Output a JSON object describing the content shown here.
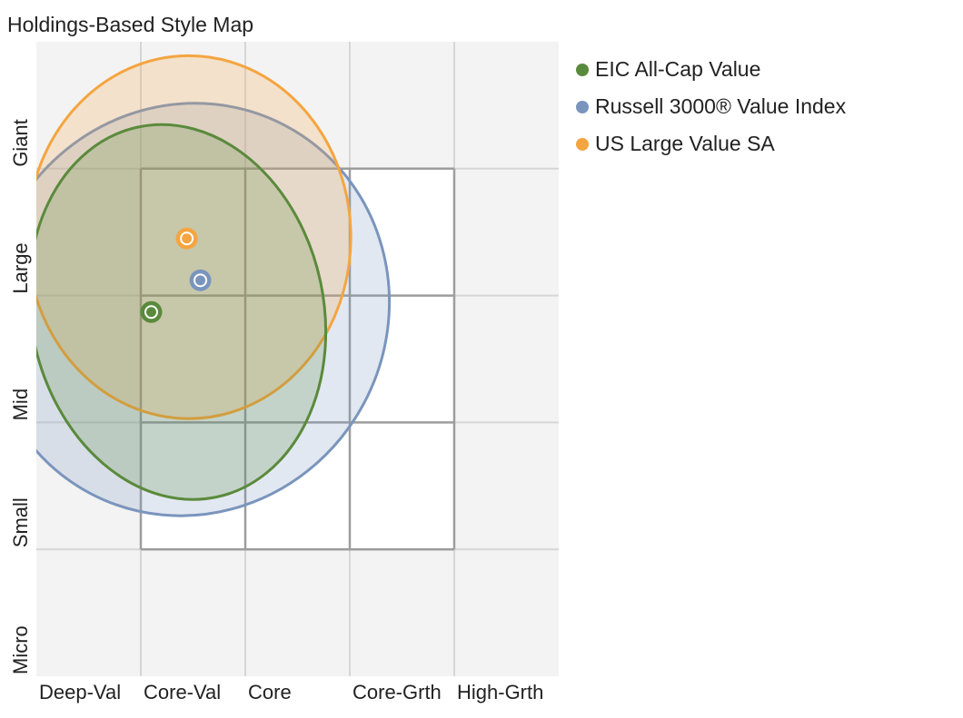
{
  "title": "Holdings-Based Style Map",
  "chart_data": {
    "type": "scatter",
    "x_categories": [
      "Deep-Val",
      "Core-Val",
      "Core",
      "Core-Grth",
      "High-Grth"
    ],
    "y_categories": [
      "Micro",
      "Small",
      "Mid",
      "Large",
      "Giant"
    ],
    "xlim": [
      0,
      5
    ],
    "ylim": [
      0,
      5
    ],
    "grid": true,
    "legend_position": "top-right (outside)",
    "style_box": {
      "x": [
        1,
        4
      ],
      "y": [
        1,
        4
      ]
    },
    "series": [
      {
        "name": "EIC All-Cap Value",
        "color": "#5a8a3c",
        "centroid": {
          "x": 1.1,
          "y": 2.87
        },
        "ellipse": {
          "cx": 1.35,
          "cy": 2.87,
          "rx": 1.4,
          "ry": 1.49,
          "rotation_deg": -12
        }
      },
      {
        "name": "Russell 3000® Value Index",
        "color": "#7a95bd",
        "centroid": {
          "x": 1.57,
          "y": 3.12
        },
        "ellipse": {
          "cx": 1.45,
          "cy": 2.89,
          "rx": 1.91,
          "ry": 1.64,
          "rotation_deg": 28
        }
      },
      {
        "name": "US Large Value SA",
        "color": "#f4a540",
        "centroid": {
          "x": 1.44,
          "y": 3.45
        },
        "ellipse": {
          "cx": 1.46,
          "cy": 3.46,
          "rx": 1.55,
          "ry": 1.43,
          "rotation_deg": 0
        }
      }
    ]
  }
}
